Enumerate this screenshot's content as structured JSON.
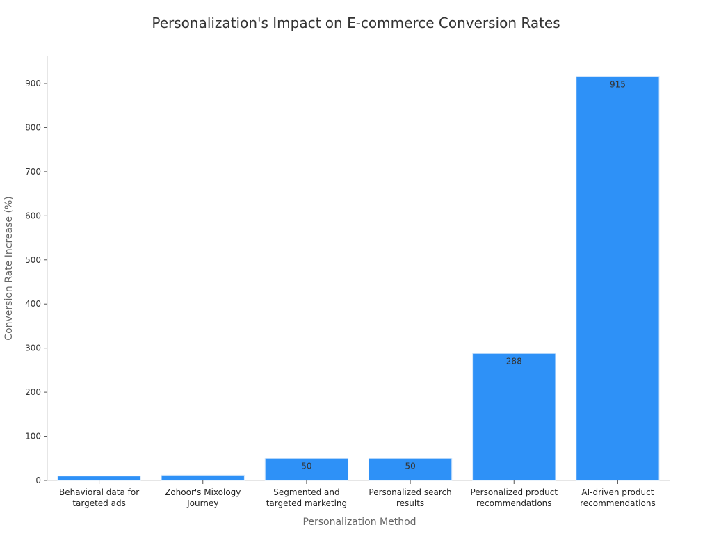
{
  "chart_data": {
    "type": "bar",
    "title": "Personalization's Impact on E-commerce Conversion Rates",
    "xlabel": "Personalization Method",
    "ylabel": "Conversion Rate Increase (%)",
    "categories": [
      [
        "Behavioral data for",
        "targeted ads"
      ],
      [
        "Zohoor's Mixology",
        "Journey"
      ],
      [
        "Segmented and",
        "targeted marketing"
      ],
      [
        "Personalized search",
        "results"
      ],
      [
        "Personalized product",
        "recommendations"
      ],
      [
        "AI-driven product",
        "recommendations"
      ]
    ],
    "values": [
      10,
      12,
      50,
      50,
      288,
      915
    ],
    "data_labels": [
      "",
      "",
      "50",
      "50",
      "288",
      "915"
    ],
    "ylim": [
      0,
      960
    ],
    "yticks": [
      0,
      100,
      200,
      300,
      400,
      500,
      600,
      700,
      800,
      900
    ],
    "grid": false,
    "bar_color": "#2e91f7"
  }
}
